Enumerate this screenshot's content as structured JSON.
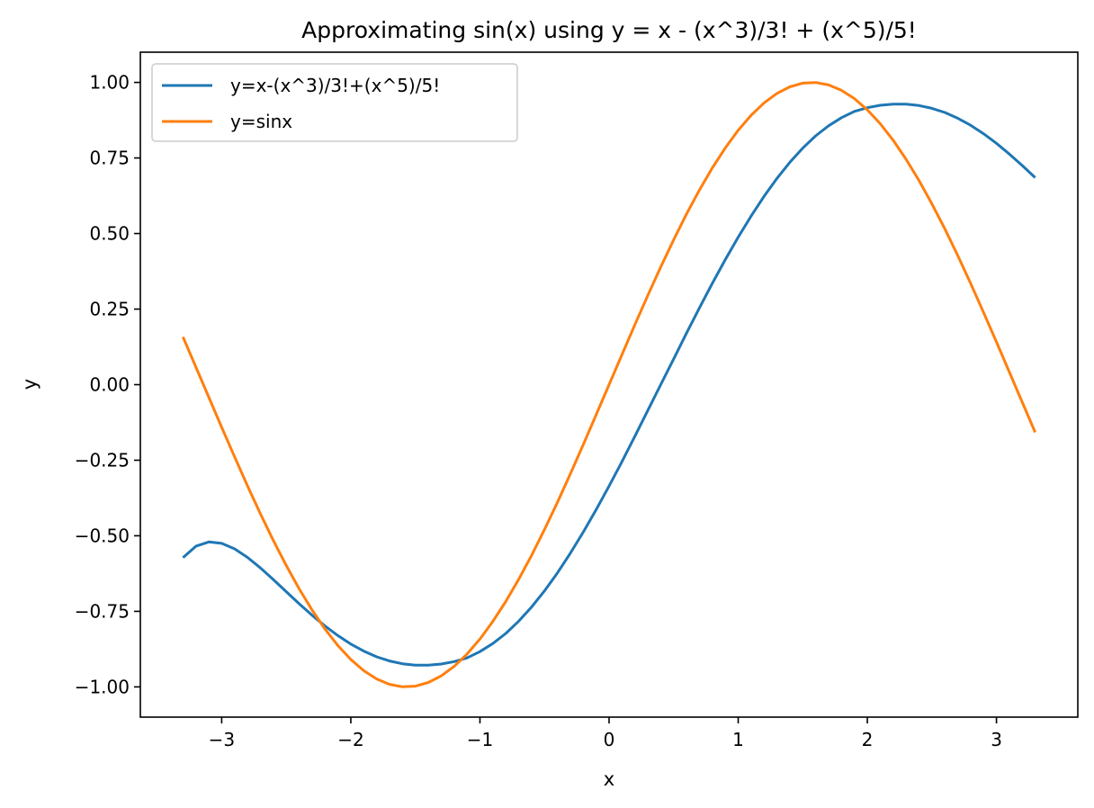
{
  "chart_data": {
    "type": "line",
    "title": "Approximating sin(x) using y = x - (x^3)/3! + (x^5)/5!",
    "xlabel": "x",
    "ylabel": "y",
    "xlim": [
      -3.63,
      3.63
    ],
    "ylim": [
      -1.1,
      1.1
    ],
    "x_ticks": [
      -3,
      -2,
      -1,
      0,
      1,
      2,
      3
    ],
    "x_tick_labels": [
      "−3",
      "−2",
      "−1",
      "0",
      "1",
      "2",
      "3"
    ],
    "y_ticks": [
      1.0,
      0.75,
      0.5,
      0.25,
      0.0,
      -0.25,
      -0.5,
      -0.75,
      -1.0
    ],
    "y_tick_labels": [
      "1.00",
      "0.75",
      "0.50",
      "0.25",
      "0.00",
      "−0.25",
      "−0.50",
      "−0.75",
      "−1.00"
    ],
    "grid": false,
    "legend_position": "top-left",
    "x": [
      -3.3,
      -3.2,
      -3.1,
      -3.0,
      -2.9,
      -2.8,
      -2.7,
      -2.6,
      -2.5,
      -2.4,
      -2.3,
      -2.2,
      -2.1,
      -2.0,
      -1.9,
      -1.8,
      -1.7,
      -1.6,
      -1.5,
      -1.4,
      -1.3,
      -1.2,
      -1.1,
      -1.0,
      -0.9,
      -0.8,
      -0.7,
      -0.6,
      -0.5,
      -0.4,
      -0.3,
      -0.2,
      -0.1,
      0.0,
      0.1,
      0.2,
      0.3,
      0.4,
      0.5,
      0.6,
      0.7,
      0.8,
      0.9,
      1.0,
      1.1,
      1.2,
      1.3,
      1.4,
      1.5,
      1.6,
      1.7,
      1.8,
      1.9,
      2.0,
      2.1,
      2.2,
      2.3,
      2.4,
      2.5,
      2.6,
      2.7,
      2.8,
      2.9,
      3.0,
      3.1,
      3.2,
      3.3
    ],
    "series": [
      {
        "name": "y=x-(x^3)/3!+(x^5)/5!",
        "color": "#1f77b4",
        "values": [
          -0.5726,
          -0.5346,
          -0.5205,
          -0.525,
          -0.5434,
          -0.5716,
          -0.6063,
          -0.6449,
          -0.6849,
          -0.7248,
          -0.763,
          -0.7985,
          -0.8304,
          -0.8583,
          -0.8816,
          -0.9004,
          -0.9143,
          -0.9235,
          -0.9281,
          -0.9283,
          -0.9243,
          -0.9162,
          -0.9042,
          -0.8833,
          -0.8564,
          -0.823,
          -0.7827,
          -0.7356,
          -0.6822,
          -0.6228,
          -0.5579,
          -0.488,
          -0.4137,
          -0.3356,
          -0.2543,
          -0.1706,
          -0.0851,
          0.0,
          0.0851,
          0.1706,
          0.2543,
          0.3356,
          0.4137,
          0.488,
          0.5579,
          0.6228,
          0.6822,
          0.7356,
          0.7827,
          0.823,
          0.8564,
          0.8833,
          0.9042,
          0.9162,
          0.9243,
          0.9283,
          0.9281,
          0.9235,
          0.9143,
          0.9004,
          0.8816,
          0.8583,
          0.8304,
          0.7985,
          0.763,
          0.7248,
          0.6849
        ]
      },
      {
        "name": "y=sinx",
        "color": "#ff7f0e",
        "values": [
          0.1577,
          0.0584,
          -0.0416,
          -0.1411,
          -0.2392,
          -0.335,
          -0.4274,
          -0.5155,
          -0.5985,
          -0.6755,
          -0.7457,
          -0.8085,
          -0.8632,
          -0.9093,
          -0.9463,
          -0.9738,
          -0.9917,
          -0.9996,
          -0.9975,
          -0.9854,
          -0.9636,
          -0.932,
          -0.8912,
          -0.8415,
          -0.7833,
          -0.7174,
          -0.6442,
          -0.5646,
          -0.4794,
          -0.3894,
          -0.2955,
          -0.1987,
          -0.0998,
          0.0,
          0.0998,
          0.1987,
          0.2955,
          0.3894,
          0.4794,
          0.5646,
          0.6442,
          0.7174,
          0.7833,
          0.8415,
          0.8912,
          0.932,
          0.9636,
          0.9854,
          0.9975,
          0.9996,
          0.9917,
          0.9738,
          0.9463,
          0.9093,
          0.8632,
          0.8085,
          0.7457,
          0.6755,
          0.5985,
          0.5155,
          0.4274,
          0.335,
          0.2392,
          0.1411,
          0.0416,
          -0.0584,
          -0.1577
        ]
      }
    ]
  }
}
